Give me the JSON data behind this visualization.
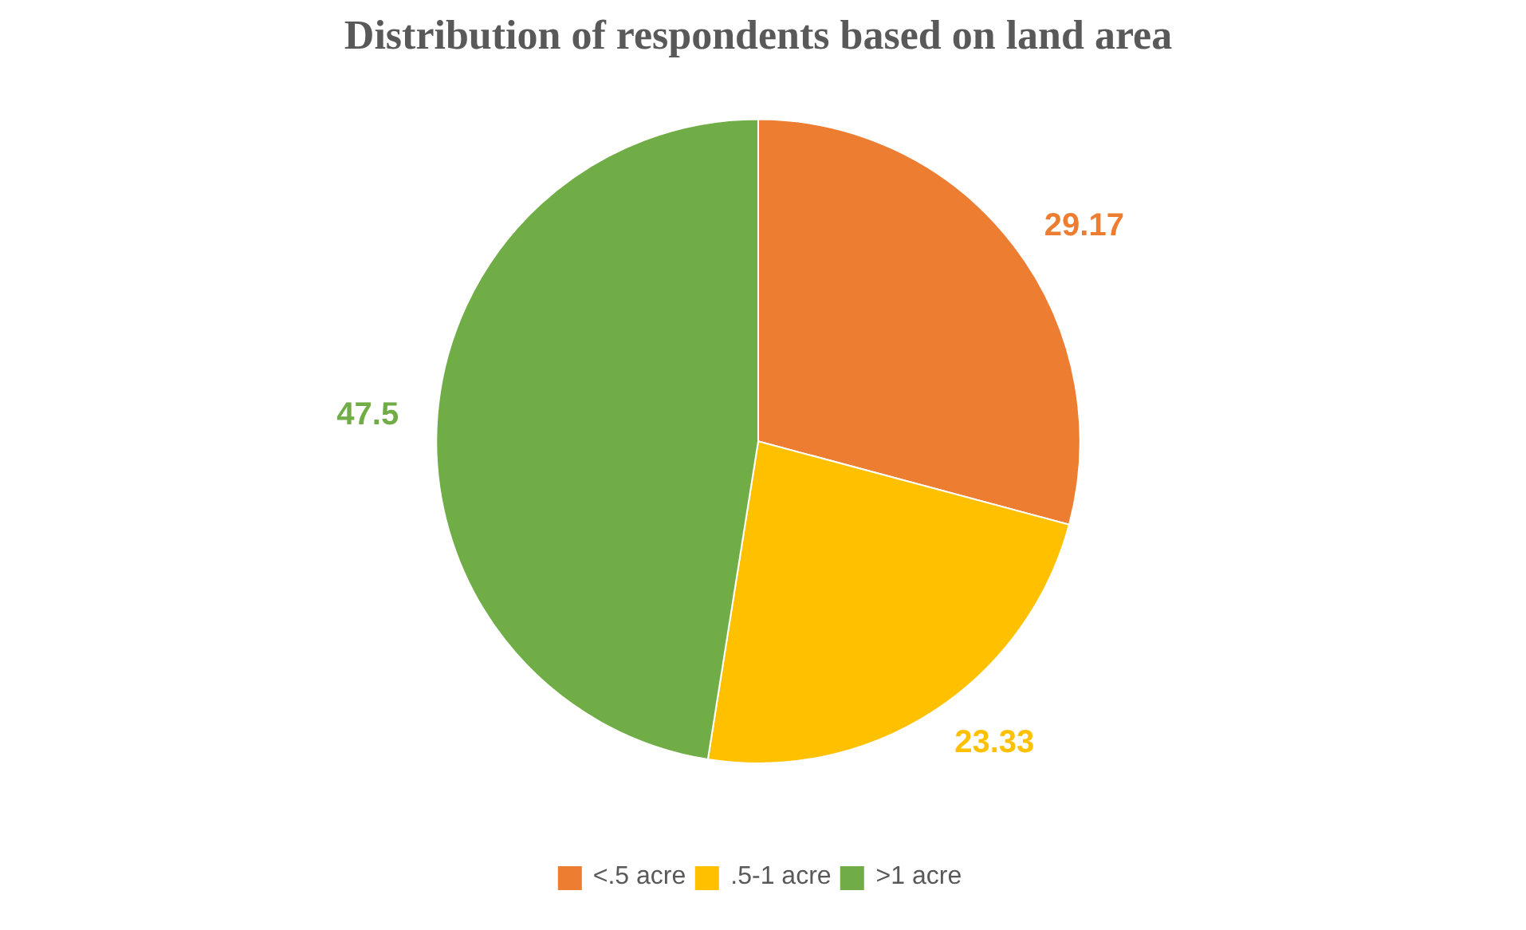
{
  "chart_data": {
    "type": "pie",
    "title": "Distribution of respondents based on land area",
    "categories": [
      "<.5 acre",
      ".5-1 acre",
      ">1 acre"
    ],
    "values": [
      29.17,
      23.33,
      47.5
    ],
    "colors": [
      "#ed7d31",
      "#ffc000",
      "#70ad47"
    ],
    "data_labels": true,
    "legend": "bottom"
  }
}
